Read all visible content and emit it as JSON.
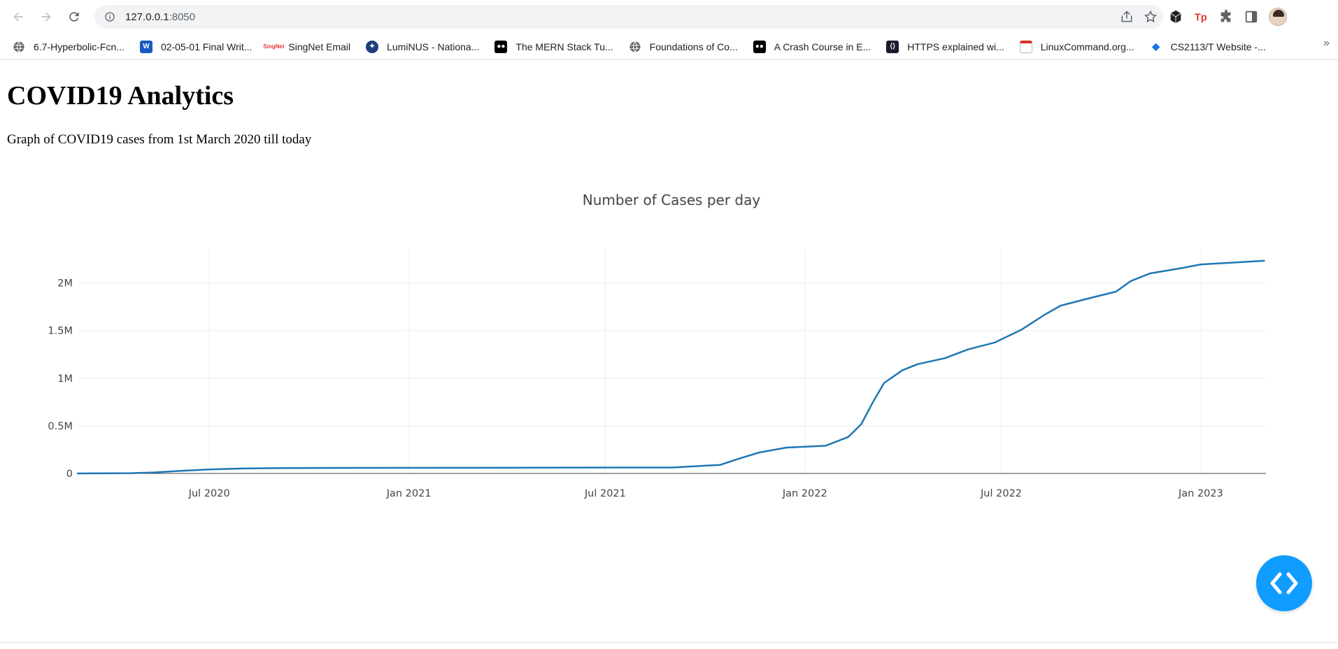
{
  "browser": {
    "url_host": "127.0.0.1",
    "url_port": ":8050",
    "bookmarks": [
      {
        "label": "6.7-Hyperbolic-Fcn...",
        "icon": "globe-icon",
        "color": "#5f6368"
      },
      {
        "label": "02-05-01 Final Writ...",
        "icon": "word-icon",
        "color": "#185abd"
      },
      {
        "label": "SingNet Email",
        "icon": "singnet-icon",
        "color": "#e53935"
      },
      {
        "label": "LumiNUS - Nationa...",
        "icon": "luminus-icon",
        "color": "#1b3f7a"
      },
      {
        "label": "The MERN Stack Tu...",
        "icon": "medium-icon",
        "color": "#000000"
      },
      {
        "label": "Foundations of Co...",
        "icon": "globe-icon",
        "color": "#5f6368"
      },
      {
        "label": "A Crash Course in E...",
        "icon": "medium-icon",
        "color": "#000000"
      },
      {
        "label": "HTTPS explained wi...",
        "icon": "code-icon",
        "color": "#1a1a2e"
      },
      {
        "label": "LinuxCommand.org...",
        "icon": "doc-icon",
        "color": "#d93025"
      },
      {
        "label": "CS2113/T Website -...",
        "icon": "grad-cap-icon",
        "color": "#1a73e8"
      }
    ],
    "more_label": "»"
  },
  "page": {
    "title": "COVID19 Analytics",
    "description": "Graph of COVID19 cases from 1st March 2020 till today"
  },
  "chart_data": {
    "type": "line",
    "title": "Number of Cases per day",
    "xlabel": "",
    "ylabel": "",
    "x_tick_labels": [
      "Jul 2020",
      "Jan 2021",
      "Jul 2021",
      "Jan 2022",
      "Jul 2022",
      "Jan 2023"
    ],
    "y_tick_labels": [
      "0",
      "0.5M",
      "1M",
      "1.5M",
      "2M"
    ],
    "ylim": [
      0,
      2350000
    ],
    "xlim": [
      "2020-03-01",
      "2023-03-02"
    ],
    "grid": true,
    "line_color": "#1f77b4",
    "series": [
      {
        "x": [
          "2020-03-01",
          "2020-04-20",
          "2020-05-10",
          "2020-06-01",
          "2020-07-01",
          "2020-08-01",
          "2020-09-10",
          "2020-12-01",
          "2021-03-01",
          "2021-06-01",
          "2021-09-01",
          "2021-10-15",
          "2021-11-01",
          "2021-11-20",
          "2021-12-15",
          "2022-01-01",
          "2022-01-20",
          "2022-02-10",
          "2022-02-22",
          "2022-03-05",
          "2022-03-15",
          "2022-04-01",
          "2022-04-15",
          "2022-05-10",
          "2022-06-01",
          "2022-06-25",
          "2022-07-20",
          "2022-08-10",
          "2022-08-25",
          "2022-09-15",
          "2022-10-15",
          "2022-10-28",
          "2022-11-15",
          "2022-12-15",
          "2023-01-01",
          "2023-02-01",
          "2023-03-01"
        ],
        "y": [
          0,
          3000,
          10000,
          25000,
          42000,
          52000,
          57000,
          58500,
          59800,
          61800,
          62500,
          90000,
          155000,
          220000,
          272000,
          281000,
          291000,
          383000,
          518000,
          755000,
          950000,
          1085000,
          1148000,
          1210000,
          1305000,
          1375000,
          1512000,
          1667000,
          1763000,
          1825000,
          1910000,
          2018000,
          2100000,
          2158000,
          2195000,
          2215000,
          2235000
        ]
      }
    ]
  }
}
